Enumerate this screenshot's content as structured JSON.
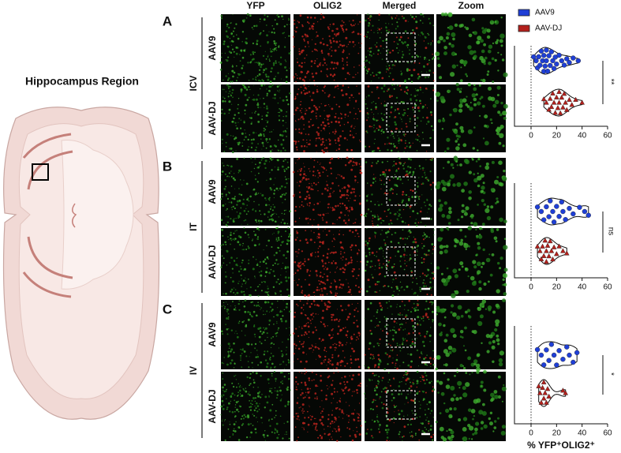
{
  "figure": {
    "title": "Hippocampus Region",
    "columns": [
      "YFP",
      "OLIG2",
      "Merged",
      "Zoom"
    ],
    "panels": [
      {
        "letter": "A",
        "route": "ICV",
        "rows": [
          "AAV9",
          "AAV-DJ"
        ]
      },
      {
        "letter": "B",
        "route": "IT",
        "rows": [
          "AAV9",
          "AAV-DJ"
        ]
      },
      {
        "letter": "C",
        "route": "IV",
        "rows": [
          "AAV9",
          "AAV-DJ"
        ]
      }
    ]
  },
  "chart_data": [
    {
      "type": "violin",
      "xlim": [
        -13,
        60
      ],
      "xticks": [
        0,
        20,
        40,
        60
      ],
      "refline": 0,
      "annotation": "**",
      "series": [
        {
          "name": "AAV9",
          "color": "#1f3fd6",
          "values": [
            2,
            4,
            5,
            6,
            7,
            8,
            9,
            10,
            10,
            11,
            12,
            12,
            13,
            14,
            15,
            16,
            17,
            18,
            19,
            20,
            22,
            24,
            26,
            28,
            30,
            33,
            37
          ]
        },
        {
          "name": "AAV-DJ",
          "color": "#b3201c",
          "values": [
            10,
            12,
            14,
            15,
            16,
            17,
            18,
            19,
            20,
            21,
            22,
            22,
            23,
            24,
            25,
            26,
            27,
            28,
            30,
            32,
            35,
            40
          ]
        }
      ]
    },
    {
      "type": "violin",
      "xlim": [
        -13,
        60
      ],
      "xticks": [
        0,
        20,
        40,
        60
      ],
      "refline": 0,
      "annotation": "ns",
      "series": [
        {
          "color": "#1f3fd6",
          "values": [
            5,
            8,
            10,
            12,
            14,
            15,
            17,
            18,
            20,
            22,
            24,
            25,
            27,
            30,
            33,
            38,
            42,
            45
          ]
        },
        {
          "color": "#b3201c",
          "values": [
            5,
            7,
            8,
            9,
            10,
            11,
            12,
            12,
            13,
            14,
            15,
            16,
            17,
            18,
            20,
            22,
            25,
            28
          ]
        }
      ]
    },
    {
      "type": "violin",
      "xlim": [
        -13,
        60
      ],
      "xticks": [
        0,
        20,
        40,
        60
      ],
      "refline": 0,
      "annotation": "*",
      "xlabel": "% YFP⁺OLIG2⁺",
      "series": [
        {
          "color": "#1f3fd6",
          "values": [
            5,
            8,
            10,
            12,
            14,
            16,
            18,
            20,
            22,
            25,
            28,
            30,
            33,
            36
          ]
        },
        {
          "color": "#b3201c",
          "values": [
            6,
            7,
            8,
            9,
            10,
            10,
            11,
            12,
            13,
            14,
            25,
            27
          ]
        }
      ]
    }
  ]
}
